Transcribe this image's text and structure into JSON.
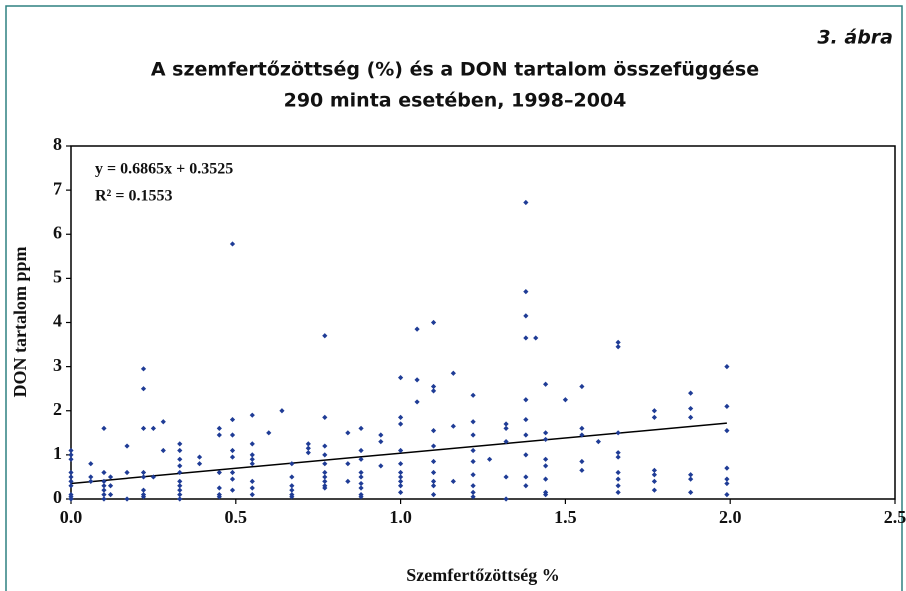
{
  "chart_data": {
    "type": "scatter",
    "figure_label": "3. ábra",
    "title": "A szemfertőzöttség (%) és a DON tartalom összefüggése",
    "subtitle": "290 minta esetében, 1998–2004",
    "xlabel": "Szemfertőzöttség %",
    "ylabel": "DON tartalom ppm",
    "color": "#1f3c96",
    "xlim": [
      0,
      2.5
    ],
    "ylim": [
      0,
      8
    ],
    "xticks": [
      {
        "value": 0,
        "label": "0.0"
      },
      {
        "value": 0.5,
        "label": "0.5"
      },
      {
        "value": 1,
        "label": "1.0"
      },
      {
        "value": 1.5,
        "label": "1.5"
      },
      {
        "value": 2,
        "label": "2.0"
      },
      {
        "value": 2.5,
        "label": "2.5"
      }
    ],
    "yticks": [
      0,
      1,
      2,
      3,
      4,
      5,
      6,
      7,
      8
    ],
    "grid": false,
    "trendline": {
      "equation": "y = 0.6865x + 0.3525",
      "r_squared": "R² = 0.1553",
      "slope": 0.6865,
      "intercept": 0.3525,
      "color": "#000000"
    },
    "x": [
      0,
      0,
      0,
      0,
      0,
      0,
      0,
      0,
      0,
      0,
      0.06,
      0.06,
      0.06,
      0.1,
      0.1,
      0.1,
      0.1,
      0.1,
      0.1,
      0.1,
      0.12,
      0.12,
      0.12,
      0.17,
      0.17,
      0.17,
      0.22,
      0.22,
      0.22,
      0.22,
      0.22,
      0.22,
      0.22,
      0.22,
      0.25,
      0.25,
      0.28,
      0.28,
      0.33,
      0.33,
      0.33,
      0.33,
      0.33,
      0.33,
      0.33,
      0.33,
      0.33,
      0.33,
      0.39,
      0.39,
      0.45,
      0.45,
      0.45,
      0.45,
      0.45,
      0.45,
      0.49,
      0.49,
      0.49,
      0.49,
      0.49,
      0.49,
      0.49,
      0.49,
      0.55,
      0.55,
      0.55,
      0.55,
      0.55,
      0.55,
      0.55,
      0.55,
      0.6,
      0.64,
      0.67,
      0.67,
      0.67,
      0.67,
      0.67,
      0.67,
      0.72,
      0.72,
      0.72,
      0.77,
      0.77,
      0.77,
      0.77,
      0.77,
      0.77,
      0.77,
      0.77,
      0.77,
      0.77,
      0.84,
      0.84,
      0.84,
      0.88,
      0.88,
      0.88,
      0.88,
      0.88,
      0.88,
      0.88,
      0.88,
      0.88,
      0.94,
      0.94,
      0.94,
      1,
      1,
      1,
      1,
      1,
      1,
      1,
      1,
      1,
      1,
      1.05,
      1.05,
      1.05,
      1.1,
      1.1,
      1.1,
      1.1,
      1.1,
      1.1,
      1.1,
      1.1,
      1.1,
      1.1,
      1.16,
      1.16,
      1.16,
      1.22,
      1.22,
      1.22,
      1.22,
      1.22,
      1.22,
      1.22,
      1.22,
      1.22,
      1.27,
      1.32,
      1.32,
      1.32,
      1.32,
      1.32,
      1.38,
      1.38,
      1.38,
      1.38,
      1.38,
      1.38,
      1.38,
      1.38,
      1.38,
      1.38,
      1.41,
      1.44,
      1.44,
      1.44,
      1.44,
      1.44,
      1.44,
      1.44,
      1.44,
      1.5,
      1.55,
      1.55,
      1.55,
      1.55,
      1.55,
      1.6,
      1.66,
      1.66,
      1.66,
      1.66,
      1.66,
      1.66,
      1.66,
      1.66,
      1.66,
      1.77,
      1.77,
      1.77,
      1.77,
      1.77,
      1.77,
      1.88,
      1.88,
      1.88,
      1.88,
      1.88,
      1.88,
      1.99,
      1.99,
      1.99,
      1.99,
      1.99,
      1.99,
      1.99
    ],
    "values": [
      1.1,
      1.0,
      0.9,
      0.6,
      0.5,
      0.4,
      0.3,
      0.1,
      0.05,
      0,
      0.8,
      0.5,
      0.4,
      1.6,
      0.6,
      0.4,
      0.3,
      0.2,
      0.1,
      0,
      0.5,
      0.3,
      0.1,
      1.2,
      0.6,
      0,
      2.95,
      2.5,
      1.6,
      0.6,
      0.5,
      0.2,
      0.1,
      0.05,
      1.6,
      0.5,
      1.75,
      1.1,
      1.25,
      1.1,
      0.9,
      0.75,
      0.6,
      0.4,
      0.3,
      0.2,
      0.1,
      0,
      0.95,
      0.8,
      1.6,
      1.45,
      0.6,
      0.25,
      0.1,
      0.05,
      5.78,
      1.8,
      1.45,
      1.1,
      0.95,
      0.6,
      0.45,
      0.2,
      1.9,
      1.25,
      1.0,
      0.9,
      0.8,
      0.4,
      0.25,
      0.1,
      1.5,
      2.0,
      0.8,
      0.5,
      0.3,
      0.2,
      0.1,
      0.05,
      1.25,
      1.15,
      1.05,
      3.7,
      1.85,
      1.2,
      1.0,
      0.8,
      0.6,
      0.5,
      0.4,
      0.3,
      0.25,
      1.5,
      0.8,
      0.4,
      1.6,
      1.1,
      0.9,
      0.6,
      0.5,
      0.35,
      0.25,
      0.1,
      0.05,
      1.45,
      1.3,
      0.75,
      2.75,
      1.85,
      1.7,
      1.1,
      0.8,
      0.6,
      0.5,
      0.4,
      0.3,
      0.15,
      3.85,
      2.7,
      2.2,
      4.0,
      2.55,
      2.45,
      1.55,
      1.2,
      0.85,
      0.6,
      0.4,
      0.3,
      0.1,
      2.85,
      1.65,
      0.4,
      2.35,
      1.75,
      1.45,
      1.1,
      0.85,
      0.55,
      0.3,
      0.15,
      0.05,
      0.9,
      1.7,
      1.6,
      1.3,
      0.5,
      0,
      6.72,
      4.7,
      4.15,
      3.65,
      2.25,
      1.8,
      1.45,
      1.0,
      0.5,
      0.3,
      3.65,
      2.6,
      1.5,
      1.35,
      0.9,
      0.75,
      0.45,
      0.15,
      0.1,
      2.25,
      2.55,
      1.6,
      1.45,
      0.85,
      0.65,
      1.3,
      3.55,
      3.45,
      1.5,
      1.05,
      0.95,
      0.6,
      0.45,
      0.3,
      0.15,
      2.0,
      1.85,
      0.65,
      0.55,
      0.4,
      0.2,
      2.4,
      2.05,
      1.85,
      0.55,
      0.45,
      0.15,
      3.0,
      2.1,
      1.55,
      0.7,
      0.45,
      0.35,
      0.1
    ]
  }
}
